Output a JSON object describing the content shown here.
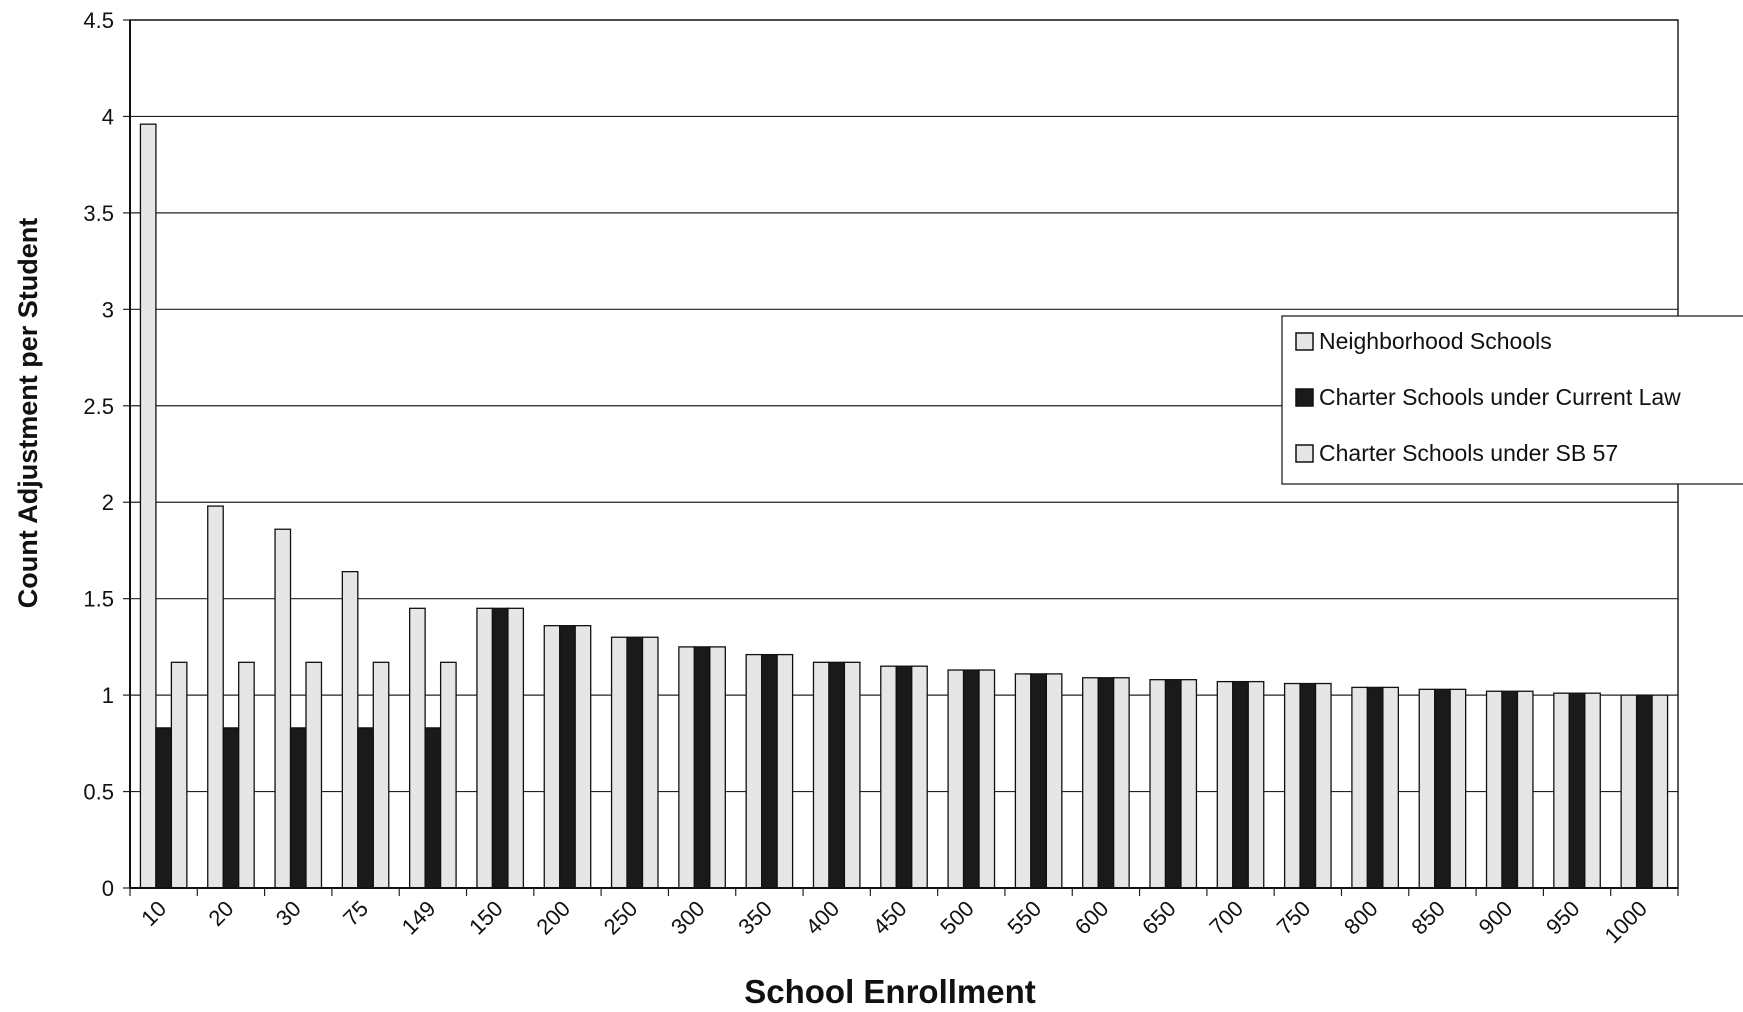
{
  "chart_data": {
    "type": "bar",
    "title": "",
    "xlabel": "School Enrollment",
    "ylabel": "Count Adjustment per Student",
    "ylim": [
      0,
      4.5
    ],
    "yticks": [
      "0",
      "0.5",
      "1",
      "1.5",
      "2",
      "2.5",
      "3",
      "3.5",
      "4",
      "4.5"
    ],
    "grid": true,
    "legend_position": "right",
    "categories": [
      "10",
      "20",
      "30",
      "75",
      "149",
      "150",
      "200",
      "250",
      "300",
      "350",
      "400",
      "450",
      "500",
      "550",
      "600",
      "650",
      "700",
      "750",
      "800",
      "850",
      "900",
      "950",
      "1000"
    ],
    "series": [
      {
        "name": "Neighborhood Schools",
        "color": "#e6e6e6",
        "values": [
          3.96,
          1.98,
          1.86,
          1.64,
          1.45,
          1.45,
          1.36,
          1.3,
          1.25,
          1.21,
          1.17,
          1.15,
          1.13,
          1.11,
          1.09,
          1.08,
          1.07,
          1.06,
          1.04,
          1.03,
          1.02,
          1.01,
          1.0
        ]
      },
      {
        "name": "Charter Schools under Current Law",
        "color": "#1a1a1a",
        "values": [
          0.83,
          0.83,
          0.83,
          0.83,
          0.83,
          1.45,
          1.36,
          1.3,
          1.25,
          1.21,
          1.17,
          1.15,
          1.13,
          1.11,
          1.09,
          1.08,
          1.07,
          1.06,
          1.04,
          1.03,
          1.02,
          1.01,
          1.0
        ]
      },
      {
        "name": "Charter Schools under SB 57",
        "color": "#e6e6e6",
        "values": [
          1.17,
          1.17,
          1.17,
          1.17,
          1.17,
          1.45,
          1.36,
          1.3,
          1.25,
          1.21,
          1.17,
          1.15,
          1.13,
          1.11,
          1.09,
          1.08,
          1.07,
          1.06,
          1.04,
          1.03,
          1.02,
          1.01,
          1.0
        ]
      }
    ]
  }
}
